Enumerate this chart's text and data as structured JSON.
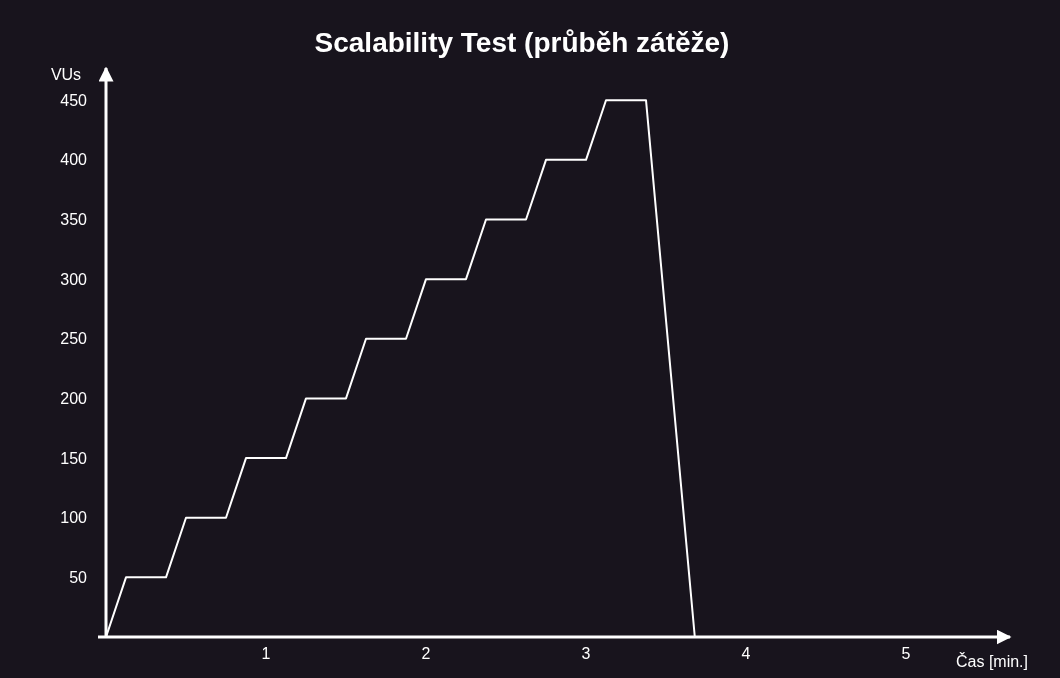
{
  "chart_data": {
    "type": "line",
    "title": "Scalability Test (průběh zátěže)",
    "xlabel": "Čas [min.]",
    "ylabel": "VUs",
    "x": [
      0,
      0.125,
      0.375,
      0.5,
      0.75,
      0.875,
      1.125,
      1.25,
      1.5,
      1.625,
      1.875,
      2.0,
      2.25,
      2.375,
      2.625,
      2.75,
      3.0,
      3.125,
      3.375,
      3.68
    ],
    "series": [
      {
        "color": "#ffffff",
        "values": [
          0,
          50,
          50,
          100,
          100,
          150,
          150,
          200,
          200,
          250,
          250,
          300,
          300,
          350,
          350,
          400,
          400,
          450,
          450,
          0
        ]
      }
    ],
    "xlim": [
      0,
      5.65
    ],
    "ylim": [
      0,
      477
    ],
    "xticks": [
      1,
      2,
      3,
      4,
      5
    ],
    "yticks": [
      50,
      100,
      150,
      200,
      250,
      300,
      350,
      400,
      450
    ],
    "grid": false,
    "marker": "none",
    "line_style": "solid"
  }
}
